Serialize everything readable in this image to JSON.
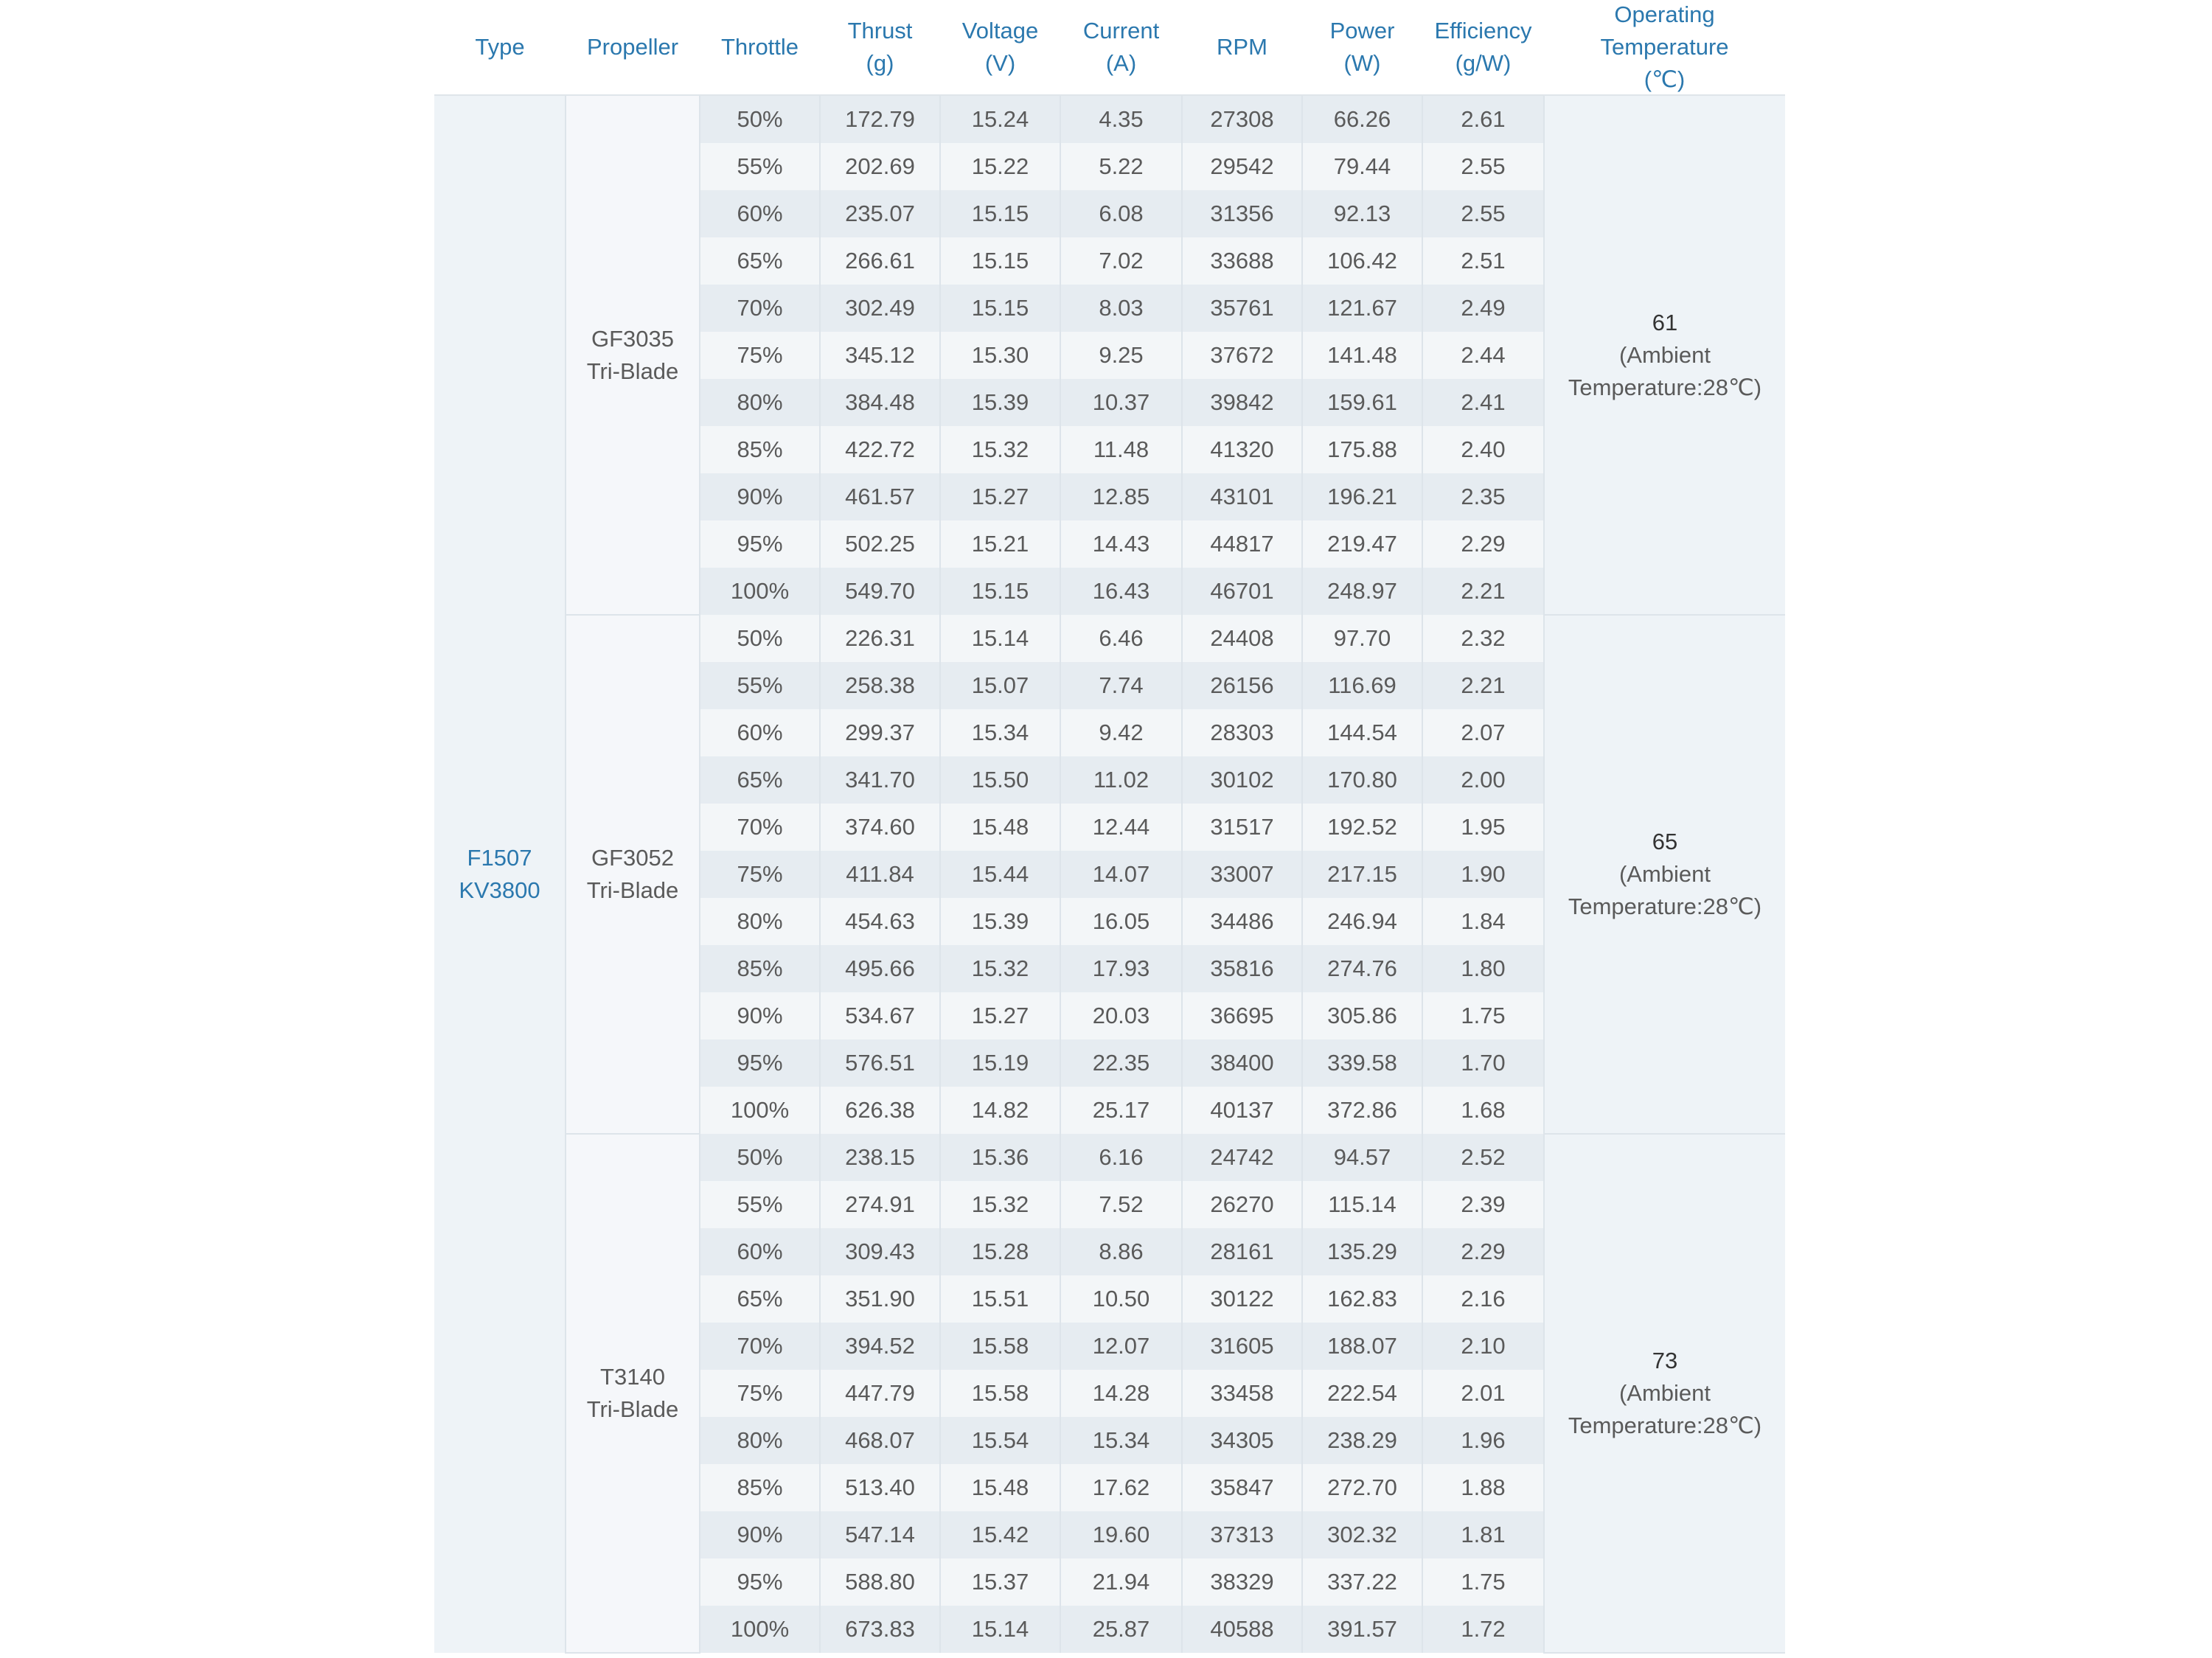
{
  "header": [
    [
      "Type"
    ],
    [
      "Propeller"
    ],
    [
      "Throttle"
    ],
    [
      "Thrust",
      "(g)"
    ],
    [
      "Voltage",
      "(V)"
    ],
    [
      "Current",
      "(A)"
    ],
    [
      "RPM"
    ],
    [
      "Power",
      "(W)"
    ],
    [
      "Efficiency",
      "(g/W)"
    ],
    [
      "Operating",
      "Temperature",
      "(℃)"
    ]
  ],
  "type": [
    "F1507",
    "KV3800"
  ],
  "groups": [
    {
      "propeller": [
        "GF3035",
        "Tri-Blade"
      ],
      "temperature": "61",
      "ambient": [
        "(Ambient",
        "Temperature:28℃)"
      ],
      "rows": [
        [
          "50%",
          "172.79",
          "15.24",
          "4.35",
          "27308",
          "66.26",
          "2.61"
        ],
        [
          "55%",
          "202.69",
          "15.22",
          "5.22",
          "29542",
          "79.44",
          "2.55"
        ],
        [
          "60%",
          "235.07",
          "15.15",
          "6.08",
          "31356",
          "92.13",
          "2.55"
        ],
        [
          "65%",
          "266.61",
          "15.15",
          "7.02",
          "33688",
          "106.42",
          "2.51"
        ],
        [
          "70%",
          "302.49",
          "15.15",
          "8.03",
          "35761",
          "121.67",
          "2.49"
        ],
        [
          "75%",
          "345.12",
          "15.30",
          "9.25",
          "37672",
          "141.48",
          "2.44"
        ],
        [
          "80%",
          "384.48",
          "15.39",
          "10.37",
          "39842",
          "159.61",
          "2.41"
        ],
        [
          "85%",
          "422.72",
          "15.32",
          "11.48",
          "41320",
          "175.88",
          "2.40"
        ],
        [
          "90%",
          "461.57",
          "15.27",
          "12.85",
          "43101",
          "196.21",
          "2.35"
        ],
        [
          "95%",
          "502.25",
          "15.21",
          "14.43",
          "44817",
          "219.47",
          "2.29"
        ],
        [
          "100%",
          "549.70",
          "15.15",
          "16.43",
          "46701",
          "248.97",
          "2.21"
        ]
      ]
    },
    {
      "propeller": [
        "GF3052",
        "Tri-Blade"
      ],
      "temperature": "65",
      "ambient": [
        "(Ambient",
        "Temperature:28℃)"
      ],
      "rows": [
        [
          "50%",
          "226.31",
          "15.14",
          "6.46",
          "24408",
          "97.70",
          "2.32"
        ],
        [
          "55%",
          "258.38",
          "15.07",
          "7.74",
          "26156",
          "116.69",
          "2.21"
        ],
        [
          "60%",
          "299.37",
          "15.34",
          "9.42",
          "28303",
          "144.54",
          "2.07"
        ],
        [
          "65%",
          "341.70",
          "15.50",
          "11.02",
          "30102",
          "170.80",
          "2.00"
        ],
        [
          "70%",
          "374.60",
          "15.48",
          "12.44",
          "31517",
          "192.52",
          "1.95"
        ],
        [
          "75%",
          "411.84",
          "15.44",
          "14.07",
          "33007",
          "217.15",
          "1.90"
        ],
        [
          "80%",
          "454.63",
          "15.39",
          "16.05",
          "34486",
          "246.94",
          "1.84"
        ],
        [
          "85%",
          "495.66",
          "15.32",
          "17.93",
          "35816",
          "274.76",
          "1.80"
        ],
        [
          "90%",
          "534.67",
          "15.27",
          "20.03",
          "36695",
          "305.86",
          "1.75"
        ],
        [
          "95%",
          "576.51",
          "15.19",
          "22.35",
          "38400",
          "339.58",
          "1.70"
        ],
        [
          "100%",
          "626.38",
          "14.82",
          "25.17",
          "40137",
          "372.86",
          "1.68"
        ]
      ]
    },
    {
      "propeller": [
        "T3140",
        "Tri-Blade"
      ],
      "temperature": "73",
      "ambient": [
        "(Ambient",
        "Temperature:28℃)"
      ],
      "rows": [
        [
          "50%",
          "238.15",
          "15.36",
          "6.16",
          "24742",
          "94.57",
          "2.52"
        ],
        [
          "55%",
          "274.91",
          "15.32",
          "7.52",
          "26270",
          "115.14",
          "2.39"
        ],
        [
          "60%",
          "309.43",
          "15.28",
          "8.86",
          "28161",
          "135.29",
          "2.29"
        ],
        [
          "65%",
          "351.90",
          "15.51",
          "10.50",
          "30122",
          "162.83",
          "2.16"
        ],
        [
          "70%",
          "394.52",
          "15.58",
          "12.07",
          "31605",
          "188.07",
          "2.10"
        ],
        [
          "75%",
          "447.79",
          "15.58",
          "14.28",
          "33458",
          "222.54",
          "2.01"
        ],
        [
          "80%",
          "468.07",
          "15.54",
          "15.34",
          "34305",
          "238.29",
          "1.96"
        ],
        [
          "85%",
          "513.40",
          "15.48",
          "17.62",
          "35847",
          "272.70",
          "1.88"
        ],
        [
          "90%",
          "547.14",
          "15.42",
          "19.60",
          "37313",
          "302.32",
          "1.81"
        ],
        [
          "95%",
          "588.80",
          "15.37",
          "21.94",
          "38329",
          "337.22",
          "1.75"
        ],
        [
          "100%",
          "673.83",
          "15.14",
          "25.87",
          "40588",
          "391.57",
          "1.72"
        ]
      ]
    }
  ]
}
